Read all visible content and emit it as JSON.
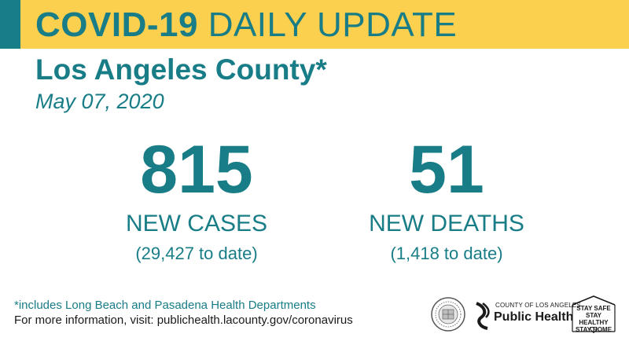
{
  "banner": {
    "title_bold": "COVID-19",
    "title_rest": "DAILY UPDATE"
  },
  "location": "Los Angeles County*",
  "date": "May 07, 2020",
  "stats": {
    "cases": {
      "value": "815",
      "label": "NEW CASES",
      "to_date": "(29,427 to date)"
    },
    "deaths": {
      "value": "51",
      "label": "NEW DEATHS",
      "to_date": "(1,418 to date)"
    }
  },
  "footer": {
    "note": "*includes Long Beach and Pasadena Health Departments",
    "info": "For more information, visit: publichealth.lacounty.gov/coronavirus"
  },
  "logos": {
    "public_health_small": "COUNTY OF LOS ANGELES",
    "public_health_big": "Public Health",
    "stay_safe_lines": [
      "STAY SAFE",
      "STAY HEALTHY",
      "STAY HOME"
    ]
  },
  "colors": {
    "banner": "#fcd04f",
    "accent": "#187d86"
  },
  "icons": [
    "county-seal-icon",
    "public-health-logo-icon",
    "house-icon",
    "heart-icon"
  ]
}
